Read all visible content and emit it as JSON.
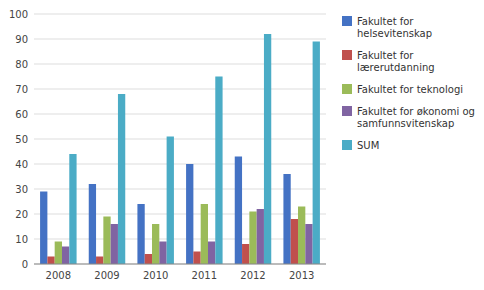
{
  "chart_data": {
    "type": "bar",
    "categories": [
      "2008",
      "2009",
      "2010",
      "2011",
      "2012",
      "2013"
    ],
    "series": [
      {
        "name": "Fakultet for\nhelsevitenskap",
        "color": "#4472C4",
        "values": [
          29,
          32,
          24,
          40,
          43,
          36
        ]
      },
      {
        "name": "Fakultet for\nlærerutdanning",
        "color": "#C0504D",
        "values": [
          3,
          3,
          4,
          5,
          8,
          18
        ]
      },
      {
        "name": "Fakultet for teknologi",
        "color": "#9BBB59",
        "values": [
          9,
          19,
          16,
          24,
          21,
          23
        ]
      },
      {
        "name": "Fakultet for økonomi og\nsamfunnsvitenskap",
        "color": "#8064A2",
        "values": [
          7,
          16,
          9,
          9,
          22,
          16
        ]
      },
      {
        "name": "SUM",
        "color": "#4BACC6",
        "values": [
          44,
          68,
          51,
          75,
          92,
          89
        ]
      }
    ],
    "ylim": [
      0,
      100
    ],
    "yticks": [
      0,
      10,
      20,
      30,
      40,
      50,
      60,
      70,
      80,
      90,
      100
    ],
    "grid": true,
    "legend": "right"
  }
}
